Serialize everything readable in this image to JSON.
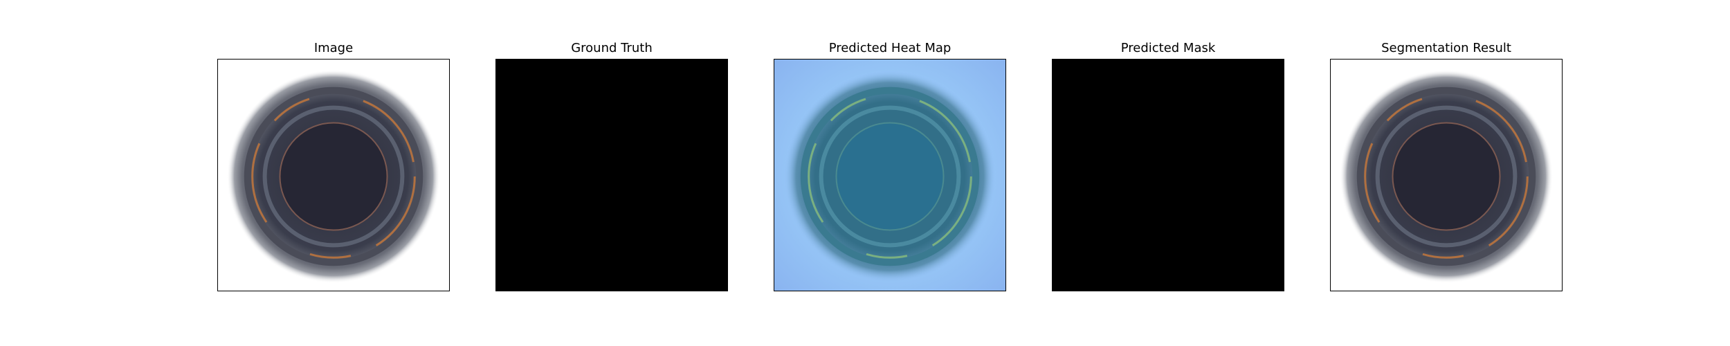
{
  "panels": [
    {
      "title": "Image",
      "kind": "photo"
    },
    {
      "title": "Ground Truth",
      "kind": "mask"
    },
    {
      "title": "Predicted Heat Map",
      "kind": "heatmap"
    },
    {
      "title": "Predicted Mask",
      "kind": "mask"
    },
    {
      "title": "Segmentation Result",
      "kind": "photo"
    }
  ],
  "colors": {
    "mask": "#000000",
    "background": "#ffffff",
    "heat_low": "#9bc7ff",
    "heat_mid": "#3a8aa0"
  }
}
